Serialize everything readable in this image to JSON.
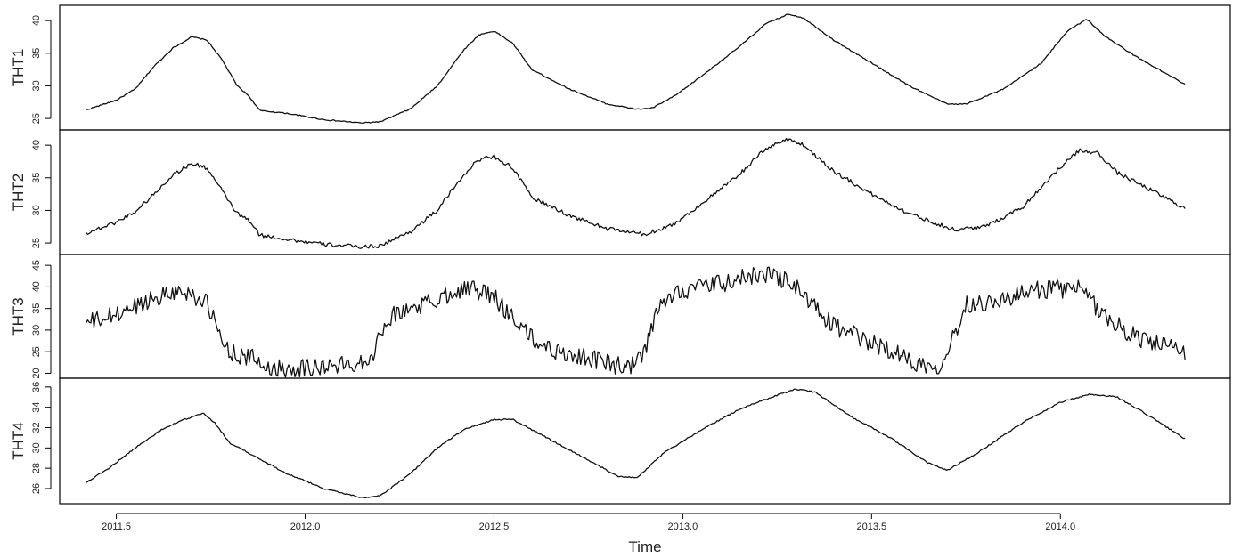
{
  "chart_data": {
    "type": "line",
    "xlabel": "Time",
    "xlim": [
      2011.35,
      2014.45
    ],
    "x_ticks": [
      2011.5,
      2012.0,
      2012.5,
      2013.0,
      2013.5,
      2014.0
    ],
    "x_tick_labels": [
      "2011.5",
      "2012.0",
      "2012.5",
      "2013.0",
      "2013.5",
      "2014.0"
    ],
    "grid": false,
    "panels": [
      {
        "name": "THT1",
        "ylim": [
          24,
          41
        ],
        "y_ticks": [
          25,
          30,
          35,
          40
        ],
        "noise": 0.05,
        "points": [
          [
            2011.42,
            26.3
          ],
          [
            2011.5,
            27.8
          ],
          [
            2011.55,
            29.5
          ],
          [
            2011.6,
            33
          ],
          [
            2011.65,
            35.8
          ],
          [
            2011.7,
            37.5
          ],
          [
            2011.74,
            37
          ],
          [
            2011.78,
            34
          ],
          [
            2011.82,
            30
          ],
          [
            2011.85,
            28.5
          ],
          [
            2011.88,
            26.2
          ],
          [
            2011.95,
            25.8
          ],
          [
            2012.05,
            24.8
          ],
          [
            2012.15,
            24.3
          ],
          [
            2012.2,
            24.5
          ],
          [
            2012.28,
            26.5
          ],
          [
            2012.35,
            30
          ],
          [
            2012.42,
            35.5
          ],
          [
            2012.46,
            37.8
          ],
          [
            2012.5,
            38.4
          ],
          [
            2012.55,
            36.5
          ],
          [
            2012.6,
            32.5
          ],
          [
            2012.7,
            29.5
          ],
          [
            2012.8,
            27.2
          ],
          [
            2012.88,
            26.4
          ],
          [
            2012.92,
            26.6
          ],
          [
            2012.98,
            28.5
          ],
          [
            2013.05,
            31.5
          ],
          [
            2013.15,
            36
          ],
          [
            2013.22,
            39.5
          ],
          [
            2013.28,
            41
          ],
          [
            2013.32,
            40.4
          ],
          [
            2013.4,
            37
          ],
          [
            2013.5,
            33.5
          ],
          [
            2013.6,
            30
          ],
          [
            2013.7,
            27.2
          ],
          [
            2013.75,
            27.2
          ],
          [
            2013.85,
            29.5
          ],
          [
            2013.95,
            33.5
          ],
          [
            2014.02,
            38.5
          ],
          [
            2014.07,
            40.2
          ],
          [
            2014.12,
            37.5
          ],
          [
            2014.2,
            34.5
          ],
          [
            2014.33,
            30.2
          ]
        ]
      },
      {
        "name": "THT2",
        "ylim": [
          24,
          41
        ],
        "y_ticks": [
          25,
          30,
          35,
          40
        ],
        "noise": 0.18,
        "points": [
          [
            2011.42,
            26.5
          ],
          [
            2011.5,
            28.2
          ],
          [
            2011.55,
            29.8
          ],
          [
            2011.6,
            32.5
          ],
          [
            2011.65,
            35.5
          ],
          [
            2011.7,
            37.2
          ],
          [
            2011.74,
            36.5
          ],
          [
            2011.78,
            33
          ],
          [
            2011.82,
            29.5
          ],
          [
            2011.85,
            28.5
          ],
          [
            2011.88,
            26.2
          ],
          [
            2011.95,
            25.6
          ],
          [
            2012.05,
            24.8
          ],
          [
            2012.15,
            24.4
          ],
          [
            2012.2,
            24.6
          ],
          [
            2012.28,
            26.8
          ],
          [
            2012.35,
            30
          ],
          [
            2012.42,
            35.5
          ],
          [
            2012.46,
            37.8
          ],
          [
            2012.5,
            38.3
          ],
          [
            2012.55,
            36.5
          ],
          [
            2012.6,
            32
          ],
          [
            2012.7,
            29.2
          ],
          [
            2012.8,
            27.2
          ],
          [
            2012.9,
            26.3
          ],
          [
            2012.98,
            28
          ],
          [
            2013.05,
            31
          ],
          [
            2013.15,
            35.5
          ],
          [
            2013.22,
            39.5
          ],
          [
            2013.28,
            41
          ],
          [
            2013.32,
            40
          ],
          [
            2013.4,
            36
          ],
          [
            2013.5,
            32.5
          ],
          [
            2013.6,
            29.5
          ],
          [
            2013.72,
            27
          ],
          [
            2013.8,
            27.5
          ],
          [
            2013.9,
            30.5
          ],
          [
            2013.98,
            35.5
          ],
          [
            2014.05,
            39.2
          ],
          [
            2014.1,
            38.8
          ],
          [
            2014.15,
            35.8
          ],
          [
            2014.25,
            32.8
          ],
          [
            2014.33,
            30.3
          ]
        ]
      },
      {
        "name": "THT3",
        "ylim": [
          20,
          45.5
        ],
        "y_ticks": [
          20,
          25,
          30,
          35,
          40,
          45
        ],
        "noise": 0.85,
        "points": [
          [
            2011.42,
            31.5
          ],
          [
            2011.5,
            33.5
          ],
          [
            2011.55,
            35.5
          ],
          [
            2011.6,
            37.5
          ],
          [
            2011.65,
            39
          ],
          [
            2011.7,
            38.5
          ],
          [
            2011.74,
            36
          ],
          [
            2011.76,
            32
          ],
          [
            2011.78,
            27
          ],
          [
            2011.82,
            24
          ],
          [
            2011.86,
            23.5
          ],
          [
            2011.9,
            21.3
          ],
          [
            2011.95,
            21.2
          ],
          [
            2012.05,
            21.5
          ],
          [
            2012.12,
            22
          ],
          [
            2012.17,
            23.5
          ],
          [
            2012.19,
            26
          ],
          [
            2012.2,
            30
          ],
          [
            2012.22,
            33
          ],
          [
            2012.28,
            35
          ],
          [
            2012.35,
            37
          ],
          [
            2012.4,
            39.5
          ],
          [
            2012.45,
            39.5
          ],
          [
            2012.5,
            37.5
          ],
          [
            2012.55,
            33
          ],
          [
            2012.6,
            28
          ],
          [
            2012.65,
            25.5
          ],
          [
            2012.75,
            23.5
          ],
          [
            2012.8,
            22.5
          ],
          [
            2012.85,
            21.2
          ],
          [
            2012.88,
            22.5
          ],
          [
            2012.9,
            25
          ],
          [
            2012.93,
            34
          ],
          [
            2012.98,
            39
          ],
          [
            2013.05,
            40
          ],
          [
            2013.12,
            41
          ],
          [
            2013.2,
            43
          ],
          [
            2013.25,
            42.5
          ],
          [
            2013.3,
            40
          ],
          [
            2013.35,
            35
          ],
          [
            2013.4,
            31
          ],
          [
            2013.5,
            27
          ],
          [
            2013.55,
            25.5
          ],
          [
            2013.6,
            23
          ],
          [
            2013.65,
            21.8
          ],
          [
            2013.68,
            22
          ],
          [
            2013.72,
            29
          ],
          [
            2013.75,
            36
          ],
          [
            2013.85,
            37
          ],
          [
            2013.95,
            39.5
          ],
          [
            2014.05,
            39.5
          ],
          [
            2014.1,
            35
          ],
          [
            2014.15,
            31
          ],
          [
            2014.2,
            28.5
          ],
          [
            2014.3,
            25.5
          ],
          [
            2014.33,
            24.8
          ]
        ]
      },
      {
        "name": "THT4",
        "ylim": [
          25,
          36
        ],
        "y_ticks": [
          26,
          28,
          30,
          32,
          34,
          36
        ],
        "y_tick_labels": [
          "26",
          "28",
          "30",
          "32",
          "34",
          "36"
        ],
        "noise": 0.06,
        "points": [
          [
            2011.42,
            26.6
          ],
          [
            2011.48,
            28
          ],
          [
            2011.55,
            30
          ],
          [
            2011.62,
            31.8
          ],
          [
            2011.68,
            32.8
          ],
          [
            2011.73,
            33.4
          ],
          [
            2011.76,
            32.5
          ],
          [
            2011.8,
            30.5
          ],
          [
            2011.86,
            29.3
          ],
          [
            2011.95,
            27.5
          ],
          [
            2012.05,
            26
          ],
          [
            2012.15,
            25.1
          ],
          [
            2012.2,
            25.3
          ],
          [
            2012.28,
            27.5
          ],
          [
            2012.35,
            30
          ],
          [
            2012.42,
            31.8
          ],
          [
            2012.5,
            32.8
          ],
          [
            2012.55,
            32.8
          ],
          [
            2012.65,
            30.8
          ],
          [
            2012.75,
            28.8
          ],
          [
            2012.83,
            27.2
          ],
          [
            2012.88,
            27.1
          ],
          [
            2012.95,
            29.5
          ],
          [
            2013.05,
            31.8
          ],
          [
            2013.15,
            33.8
          ],
          [
            2013.25,
            35.2
          ],
          [
            2013.3,
            35.8
          ],
          [
            2013.35,
            35.5
          ],
          [
            2013.45,
            33
          ],
          [
            2013.55,
            31
          ],
          [
            2013.65,
            28.5
          ],
          [
            2013.7,
            27.8
          ],
          [
            2013.78,
            29.5
          ],
          [
            2013.9,
            32.5
          ],
          [
            2014.0,
            34.5
          ],
          [
            2014.08,
            35.3
          ],
          [
            2014.15,
            35
          ],
          [
            2014.22,
            33.5
          ],
          [
            2014.33,
            30.9
          ]
        ]
      }
    ]
  }
}
